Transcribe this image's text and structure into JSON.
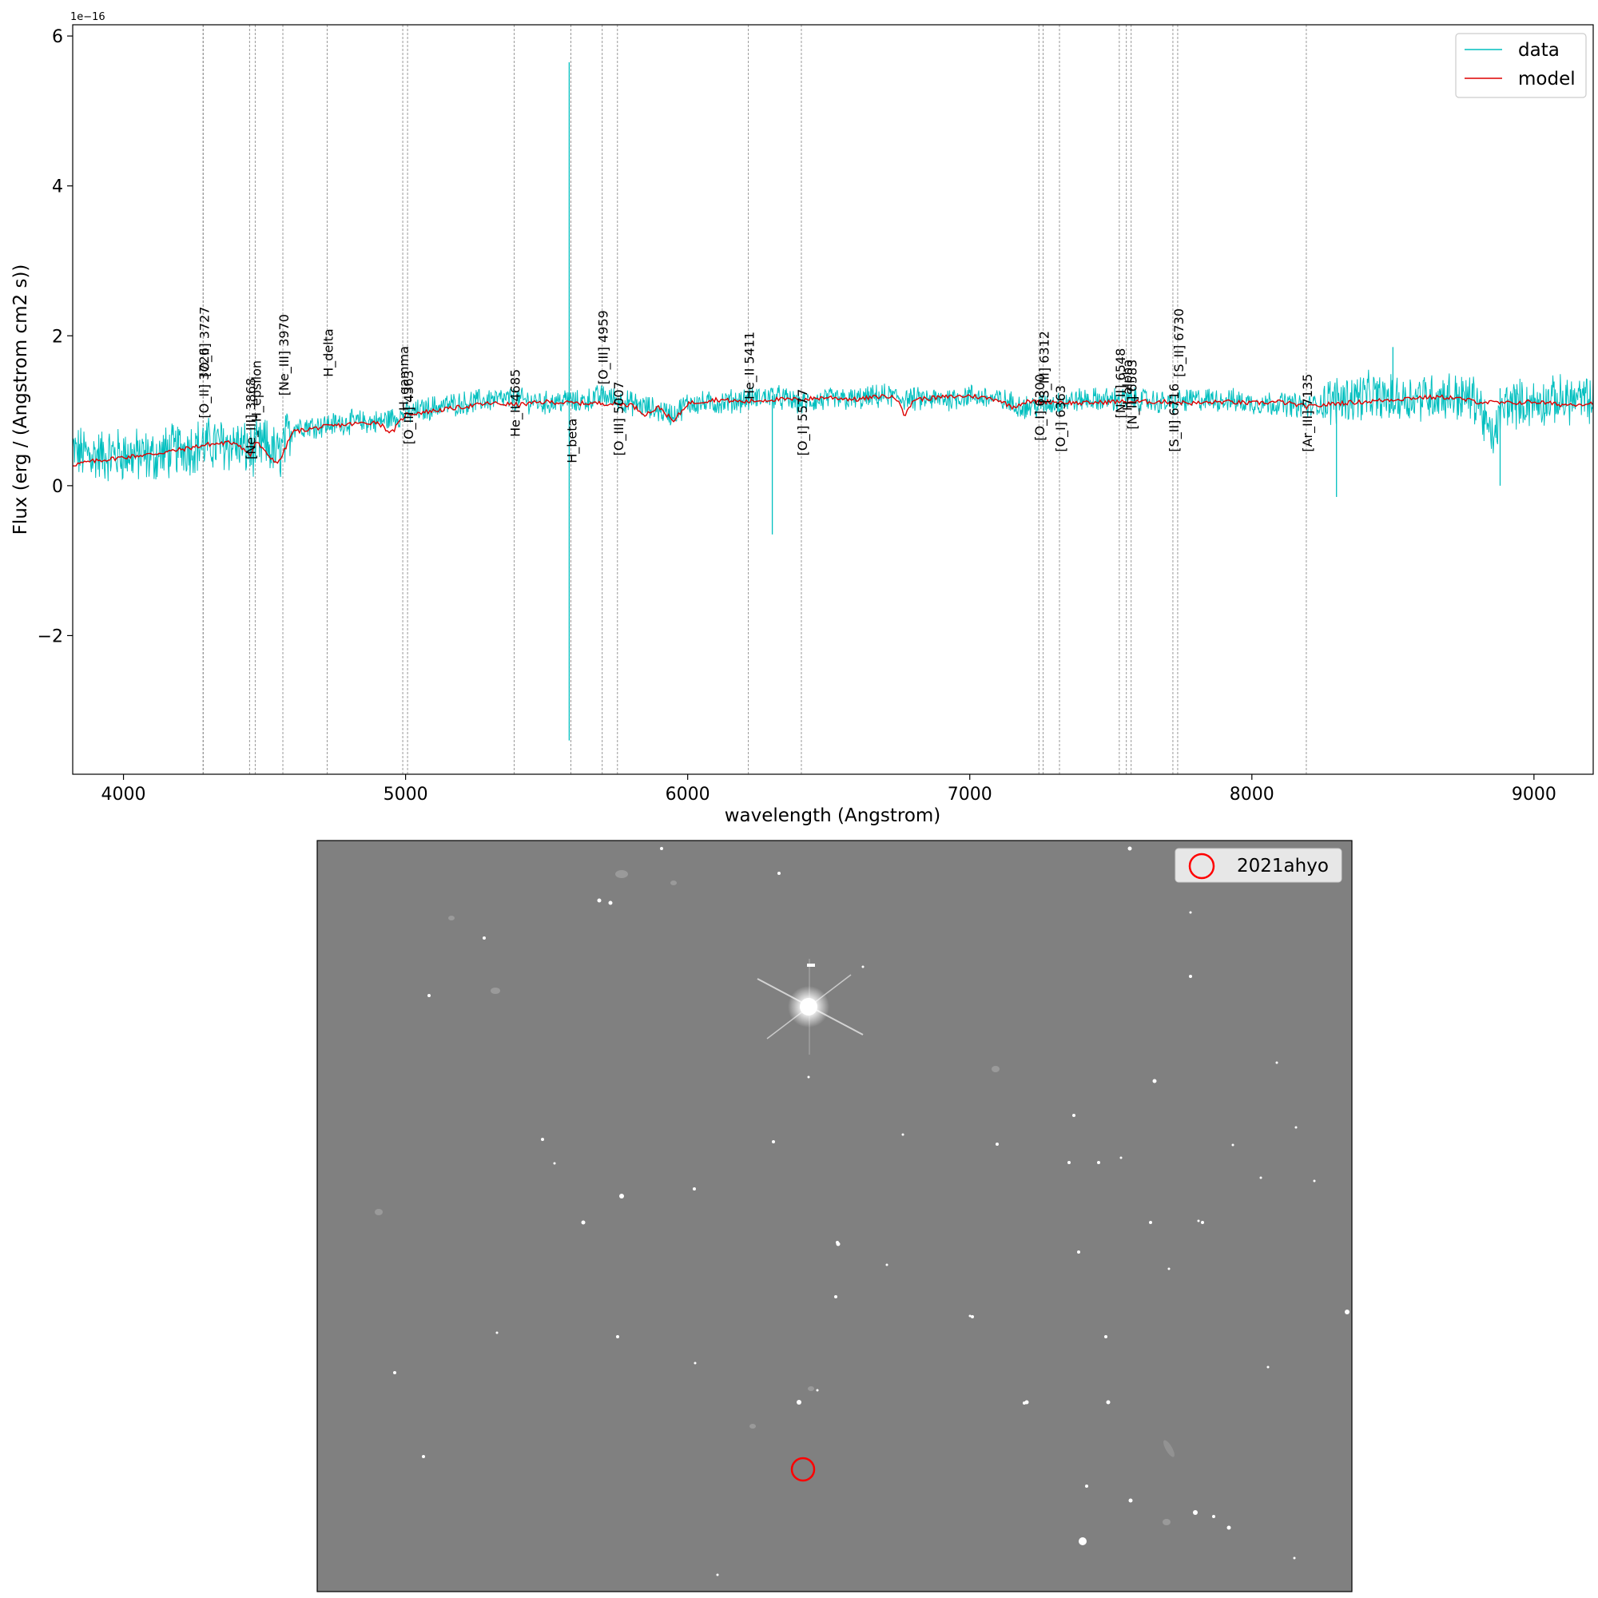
{
  "chart_data": [
    {
      "type": "line",
      "title": "",
      "xlabel": "wavelength (Angstrom)",
      "ylabel": "Flux (erg / (Angstrom cm2 s))",
      "offset_text": "1e−16",
      "xlim": [
        3820,
        9210
      ],
      "ylim": [
        -3.85,
        6.15
      ],
      "x_ticks": [
        4000,
        5000,
        6000,
        7000,
        8000,
        9000
      ],
      "y_ticks": [
        -2,
        0,
        2,
        4,
        6
      ],
      "y_tick_labels": [
        "−2",
        "0",
        "2",
        "4",
        "6"
      ],
      "grid": false,
      "legend_position": "upper right",
      "series": [
        {
          "name": "data",
          "color": "#00bfbf",
          "x": [
            3820,
            3900,
            4000,
            4100,
            4200,
            4300,
            4400,
            4450,
            4500,
            4550,
            4600,
            4700,
            4800,
            4900,
            5000,
            5100,
            5200,
            5300,
            5400,
            5500,
            5580,
            5600,
            5700,
            5800,
            5900,
            5950,
            6000,
            6100,
            6200,
            6300,
            6400,
            6500,
            6600,
            6700,
            6800,
            6900,
            7000,
            7100,
            7200,
            7300,
            7400,
            7500,
            7600,
            7700,
            7800,
            7900,
            8000,
            8100,
            8200,
            8300,
            8400,
            8500,
            8600,
            8700,
            8800,
            8850,
            8900,
            9000,
            9100,
            9210
          ],
          "y": [
            0.45,
            0.4,
            0.42,
            0.38,
            0.5,
            0.55,
            0.55,
            0.45,
            0.55,
            0.4,
            0.8,
            0.8,
            0.85,
            0.85,
            0.95,
            1.05,
            1.1,
            1.15,
            1.15,
            1.1,
            1.15,
            1.1,
            1.2,
            1.1,
            1.0,
            0.95,
            1.1,
            1.1,
            1.15,
            1.2,
            1.1,
            1.15,
            1.15,
            1.2,
            1.15,
            1.15,
            1.2,
            1.15,
            1.05,
            1.1,
            1.15,
            1.15,
            1.15,
            1.1,
            1.15,
            1.15,
            1.1,
            1.1,
            1.05,
            1.15,
            1.2,
            1.15,
            1.2,
            1.2,
            1.15,
            0.6,
            1.1,
            1.1,
            1.15,
            1.15
          ],
          "spikes": [
            {
              "x": 5580,
              "y_max": 5.65,
              "y_min": -3.4
            },
            {
              "x": 6300,
              "y_max": 1.2,
              "y_min": -0.65
            },
            {
              "x": 8500,
              "y_max": 1.85,
              "y_min": 1.0
            },
            {
              "x": 8880,
              "y_max": 1.3,
              "y_min": 0.0
            },
            {
              "x": 8300,
              "y_max": 1.1,
              "y_min": -0.15
            }
          ]
        },
        {
          "name": "model",
          "color": "#dd0000",
          "x": [
            3820,
            3900,
            4000,
            4100,
            4200,
            4300,
            4400,
            4450,
            4470,
            4500,
            4530,
            4550,
            4600,
            4700,
            4800,
            4900,
            4950,
            5000,
            5100,
            5200,
            5300,
            5400,
            5500,
            5600,
            5700,
            5800,
            5850,
            5900,
            5950,
            6000,
            6100,
            6200,
            6300,
            6400,
            6500,
            6600,
            6700,
            6750,
            6770,
            6800,
            6900,
            7000,
            7100,
            7150,
            7200,
            7300,
            7400,
            7500,
            7600,
            7700,
            7800,
            7900,
            8000,
            8100,
            8200,
            8300,
            8400,
            8500,
            8600,
            8700,
            8800,
            8900,
            9000,
            9100,
            9210
          ],
          "y": [
            0.28,
            0.33,
            0.38,
            0.42,
            0.48,
            0.55,
            0.58,
            0.4,
            0.6,
            0.45,
            0.35,
            0.3,
            0.72,
            0.78,
            0.82,
            0.85,
            0.7,
            0.95,
            1.0,
            1.05,
            1.1,
            1.08,
            1.12,
            1.1,
            1.1,
            1.08,
            0.95,
            1.05,
            0.85,
            1.1,
            1.15,
            1.12,
            1.15,
            1.15,
            1.18,
            1.15,
            1.2,
            1.15,
            0.92,
            1.15,
            1.18,
            1.2,
            1.15,
            1.05,
            1.12,
            1.12,
            1.1,
            1.12,
            1.12,
            1.12,
            1.1,
            1.12,
            1.1,
            1.12,
            1.05,
            1.1,
            1.12,
            1.15,
            1.18,
            1.18,
            1.12,
            1.1,
            1.12,
            1.08,
            1.1
          ]
        }
      ],
      "lines": [
        {
          "name": "[O_II] 3726",
          "x": 4282,
          "label_y": 0.9
        },
        {
          "name": "[O_II] 3727",
          "x": 4283,
          "label_y": 1.45
        },
        {
          "name": "[Ne_III] 3868",
          "x": 4447,
          "label_y": 0.35
        },
        {
          "name": "H_epsilon",
          "x": 4467,
          "label_y": 0.85
        },
        {
          "name": "[Ne_III] 3970",
          "x": 4565,
          "label_y": 1.2
        },
        {
          "name": "H_delta",
          "x": 4722,
          "label_y": 1.45
        },
        {
          "name": "H_gamma",
          "x": 4990,
          "label_y": 1.0
        },
        {
          "name": "[O_III] 4363",
          "x": 5007,
          "label_y": 0.55
        },
        {
          "name": "He_II 4685",
          "x": 5385,
          "label_y": 0.65
        },
        {
          "name": "H_beta",
          "x": 5586,
          "label_y": 0.3
        },
        {
          "name": "[O_III] 4959",
          "x": 5697,
          "label_y": 1.35
        },
        {
          "name": "[O_III] 5007",
          "x": 5751,
          "label_y": 0.4
        },
        {
          "name": "He_II 5411",
          "x": 6215,
          "label_y": 1.15
        },
        {
          "name": "[O_I] 5577",
          "x": 6403,
          "label_y": 0.4
        },
        {
          "name": "[O_I] 6300",
          "x": 7245,
          "label_y": 0.6
        },
        {
          "name": "[S_III] 6312",
          "x": 7260,
          "label_y": 1.1
        },
        {
          "name": "[O_I] 6363",
          "x": 7318,
          "label_y": 0.45
        },
        {
          "name": "[N_II] 6548",
          "x": 7530,
          "label_y": 0.9
        },
        {
          "name": "H_alpha",
          "x": 7555,
          "label_y": 1.0
        },
        {
          "name": "[N_II] 6583",
          "x": 7572,
          "label_y": 0.75
        },
        {
          "name": "[S_II] 6716",
          "x": 7720,
          "label_y": 0.45
        },
        {
          "name": "[S_II] 6730",
          "x": 7737,
          "label_y": 1.45
        },
        {
          "name": "[Ar_III] 7135",
          "x": 8193,
          "label_y": 0.45
        }
      ]
    }
  ],
  "image_panel": {
    "legend_label": "2021ahyo",
    "marker_color": "#ff0000",
    "background_color": "#808080"
  }
}
